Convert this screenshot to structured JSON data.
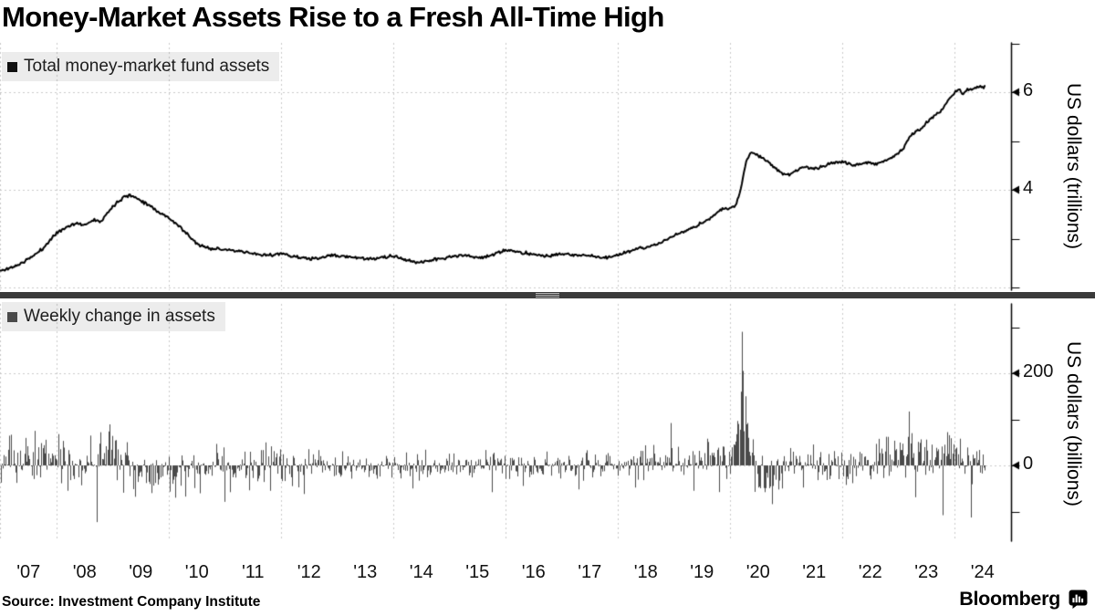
{
  "title": "Money-Market Assets Rise to a Fresh All-Time High",
  "source": "Source: Investment Company Institute",
  "branding": {
    "name": "Bloomberg",
    "logo_icon": "bloomberg-terminal-icon"
  },
  "colors": {
    "line": "#000000",
    "bars": "#4a4a4a",
    "grid": "#c9c9c9",
    "axis": "#000000",
    "divider": "#3b3b3b",
    "legend_bg": "rgba(0,0,0,0.075)"
  },
  "top_panel": {
    "legend": {
      "marker_color": "#111111",
      "label": "Total money-market fund assets"
    },
    "y_axis_title": "US dollars (trillions)",
    "y_ticks_labeled": [
      6,
      4
    ],
    "y_ticks_unlabeled": [
      7,
      5,
      3,
      2
    ]
  },
  "bottom_panel": {
    "legend": {
      "marker_color": "#4a4a4a",
      "label": "Weekly change in assets"
    },
    "y_axis_title": "US dollars (billions)",
    "y_ticks_labeled": [
      200,
      0
    ],
    "y_ticks_unlabeled": [
      300,
      100,
      -100
    ]
  },
  "x_axis": {
    "start_year": 2007,
    "tick_labels": [
      "'07",
      "'08",
      "'09",
      "'10",
      "'11",
      "'12",
      "'13",
      "'14",
      "'15",
      "'16",
      "'17",
      "'18",
      "'19",
      "'20",
      "'21",
      "'22",
      "'23",
      "'24"
    ],
    "gridline_years": [
      2008,
      2010,
      2012,
      2014,
      2016,
      2018,
      2020,
      2022,
      2024
    ]
  },
  "chart_data": [
    {
      "type": "line",
      "name": "Total money-market fund assets",
      "units": "USD trillions",
      "x_start": 2007.0,
      "x_end": 2024.55,
      "ylim": [
        2,
        7
      ],
      "gridline_values": [
        6,
        4,
        2
      ],
      "points": [
        [
          2007.0,
          2.34
        ],
        [
          2007.15,
          2.39
        ],
        [
          2007.35,
          2.48
        ],
        [
          2007.55,
          2.62
        ],
        [
          2007.75,
          2.79
        ],
        [
          2007.95,
          3.06
        ],
        [
          2008.1,
          3.19
        ],
        [
          2008.25,
          3.28
        ],
        [
          2008.4,
          3.31
        ],
        [
          2008.5,
          3.27
        ],
        [
          2008.6,
          3.36
        ],
        [
          2008.72,
          3.39
        ],
        [
          2008.8,
          3.36
        ],
        [
          2008.9,
          3.52
        ],
        [
          2009.05,
          3.72
        ],
        [
          2009.2,
          3.86
        ],
        [
          2009.3,
          3.89
        ],
        [
          2009.45,
          3.82
        ],
        [
          2009.65,
          3.69
        ],
        [
          2009.85,
          3.52
        ],
        [
          2010.0,
          3.43
        ],
        [
          2010.2,
          3.24
        ],
        [
          2010.4,
          3.0
        ],
        [
          2010.55,
          2.86
        ],
        [
          2010.7,
          2.81
        ],
        [
          2010.9,
          2.79
        ],
        [
          2011.1,
          2.76
        ],
        [
          2011.4,
          2.71
        ],
        [
          2011.7,
          2.66
        ],
        [
          2012.0,
          2.69
        ],
        [
          2012.3,
          2.62
        ],
        [
          2012.6,
          2.58
        ],
        [
          2012.9,
          2.66
        ],
        [
          2013.2,
          2.63
        ],
        [
          2013.6,
          2.58
        ],
        [
          2014.0,
          2.64
        ],
        [
          2014.4,
          2.51
        ],
        [
          2014.8,
          2.58
        ],
        [
          2015.2,
          2.66
        ],
        [
          2015.6,
          2.61
        ],
        [
          2016.0,
          2.76
        ],
        [
          2016.4,
          2.7
        ],
        [
          2016.7,
          2.64
        ],
        [
          2017.0,
          2.68
        ],
        [
          2017.4,
          2.66
        ],
        [
          2017.8,
          2.61
        ],
        [
          2018.1,
          2.7
        ],
        [
          2018.4,
          2.8
        ],
        [
          2018.7,
          2.88
        ],
        [
          2019.0,
          3.06
        ],
        [
          2019.3,
          3.2
        ],
        [
          2019.6,
          3.38
        ],
        [
          2019.85,
          3.6
        ],
        [
          2020.0,
          3.63
        ],
        [
          2020.1,
          3.68
        ],
        [
          2020.18,
          3.95
        ],
        [
          2020.28,
          4.55
        ],
        [
          2020.38,
          4.79
        ],
        [
          2020.5,
          4.71
        ],
        [
          2020.65,
          4.6
        ],
        [
          2020.8,
          4.45
        ],
        [
          2020.95,
          4.33
        ],
        [
          2021.05,
          4.3
        ],
        [
          2021.2,
          4.42
        ],
        [
          2021.35,
          4.47
        ],
        [
          2021.5,
          4.42
        ],
        [
          2021.7,
          4.5
        ],
        [
          2021.9,
          4.56
        ],
        [
          2022.0,
          4.58
        ],
        [
          2022.2,
          4.5
        ],
        [
          2022.4,
          4.56
        ],
        [
          2022.6,
          4.53
        ],
        [
          2022.8,
          4.6
        ],
        [
          2022.95,
          4.72
        ],
        [
          2023.1,
          4.86
        ],
        [
          2023.2,
          5.1
        ],
        [
          2023.32,
          5.18
        ],
        [
          2023.45,
          5.3
        ],
        [
          2023.6,
          5.48
        ],
        [
          2023.75,
          5.6
        ],
        [
          2023.9,
          5.85
        ],
        [
          2024.0,
          5.98
        ],
        [
          2024.08,
          6.05
        ],
        [
          2024.15,
          5.98
        ],
        [
          2024.25,
          6.06
        ],
        [
          2024.4,
          6.1
        ],
        [
          2024.55,
          6.12
        ]
      ],
      "weekly_noise_trillions": 0.015,
      "noise_seed": 11
    },
    {
      "type": "bar",
      "name": "Weekly change in assets",
      "units": "USD billions",
      "x_start": 2007.0,
      "x_end": 2024.55,
      "ylim": [
        -160,
        355
      ],
      "gridline_values": [
        200,
        0
      ],
      "bar_period_weeks": 1,
      "drift_from_series": "Total money-market fund assets",
      "volatility_eras": [
        {
          "from": 2007.0,
          "to": 2009.5,
          "sigma": 26
        },
        {
          "from": 2009.5,
          "to": 2012.5,
          "sigma": 21
        },
        {
          "from": 2012.5,
          "to": 2018.0,
          "sigma": 14
        },
        {
          "from": 2018.0,
          "to": 2019.8,
          "sigma": 17
        },
        {
          "from": 2019.8,
          "to": 2020.7,
          "sigma": 28
        },
        {
          "from": 2020.7,
          "to": 2022.5,
          "sigma": 17
        },
        {
          "from": 2022.5,
          "to": 2024.55,
          "sigma": 22
        }
      ],
      "notable_weeks": [
        [
          2007.62,
          75
        ],
        [
          2008.03,
          68
        ],
        [
          2008.2,
          -55
        ],
        [
          2008.72,
          -123
        ],
        [
          2008.78,
          72
        ],
        [
          2009.0,
          64
        ],
        [
          2009.4,
          -68
        ],
        [
          2009.7,
          -60
        ],
        [
          2010.12,
          -70
        ],
        [
          2011.0,
          -79
        ],
        [
          2011.1,
          -58
        ],
        [
          2011.8,
          -55
        ],
        [
          2012.4,
          -62
        ],
        [
          2014.35,
          -50
        ],
        [
          2015.75,
          -58
        ],
        [
          2017.3,
          -52
        ],
        [
          2018.3,
          -48
        ],
        [
          2018.94,
          92
        ],
        [
          2019.35,
          -55
        ],
        [
          2019.6,
          58
        ],
        [
          2020.16,
          90
        ],
        [
          2020.2,
          160
        ],
        [
          2020.22,
          290
        ],
        [
          2020.24,
          205
        ],
        [
          2020.27,
          150
        ],
        [
          2020.3,
          92
        ],
        [
          2020.33,
          60
        ],
        [
          2020.5,
          -48
        ],
        [
          2020.62,
          -58
        ],
        [
          2020.75,
          -84
        ],
        [
          2020.92,
          -50
        ],
        [
          2021.3,
          -48
        ],
        [
          2022.8,
          62
        ],
        [
          2023.17,
          62
        ],
        [
          2023.2,
          117
        ],
        [
          2023.24,
          70
        ],
        [
          2023.3,
          -69
        ],
        [
          2023.5,
          56
        ],
        [
          2023.79,
          -108
        ],
        [
          2024.1,
          58
        ],
        [
          2024.28,
          -113
        ]
      ],
      "value_clamp": [
        -125,
        295
      ],
      "noise_seed": 23
    }
  ]
}
